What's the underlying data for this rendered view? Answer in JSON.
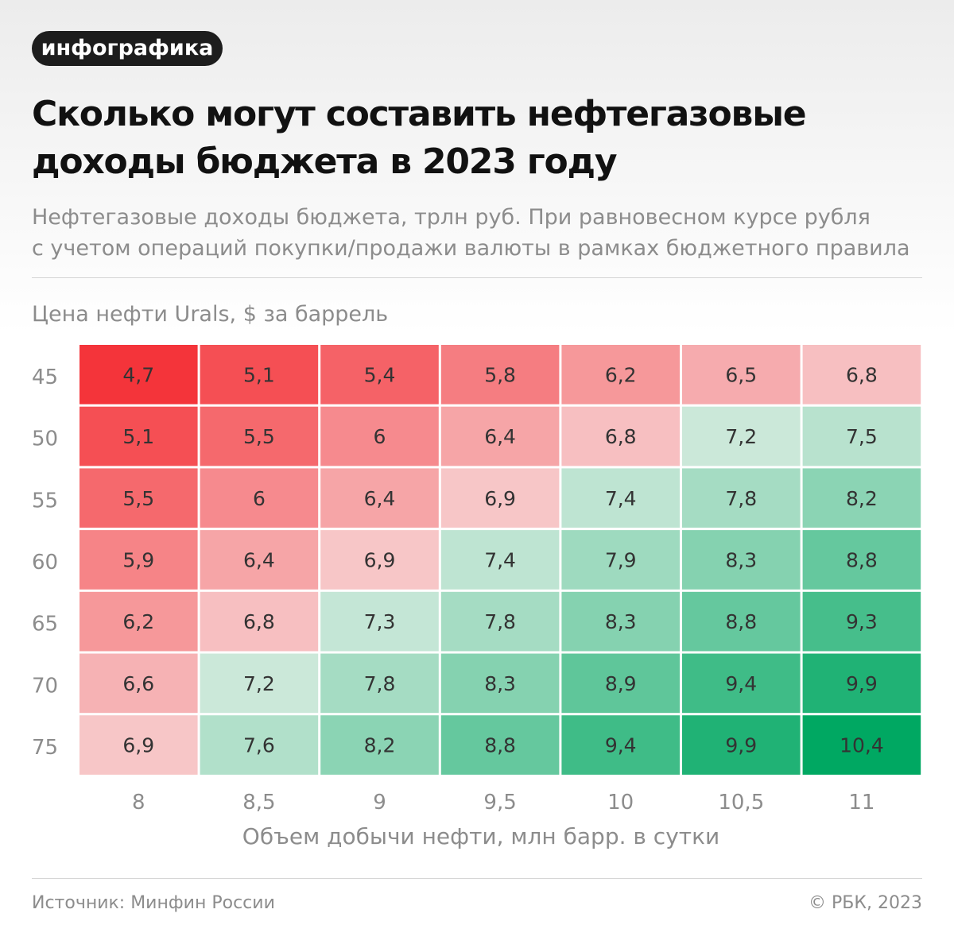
{
  "badge": "инфографика",
  "title_lines": [
    "Сколько могут составить нефтегазовые",
    "доходы бюджета в 2023 году"
  ],
  "subtitle_lines": [
    "Нефтегазовые доходы бюджета, трлн руб. При равновесном курсе рубля",
    "с учетом операций покупки/продажи валюты в рамках бюджетного правила"
  ],
  "footer": {
    "source": "Источник: Минфин России",
    "copyright": "© РБК, 2023"
  },
  "colors": {
    "low": "#f4343a",
    "mid_red": "#f7d0d1",
    "mid_green": "#d4ebdf",
    "high": "#00a862",
    "text": "#333333",
    "axis_text": "#8c8c8c"
  },
  "chart_data": {
    "type": "heatmap",
    "title": "Сколько могут составить нефтегазовые доходы бюджета в 2023 году",
    "ylabel": "Цена нефти Urals, $ за баррель",
    "xlabel": "Объем добычи нефти, млн барр. в сутки",
    "x": [
      "8",
      "8,5",
      "9",
      "9,5",
      "10",
      "10,5",
      "11"
    ],
    "y": [
      "45",
      "50",
      "55",
      "60",
      "65",
      "70",
      "75"
    ],
    "values": [
      [
        4.7,
        5.1,
        5.4,
        5.8,
        6.2,
        6.5,
        6.8
      ],
      [
        5.1,
        5.5,
        6.0,
        6.4,
        6.8,
        7.2,
        7.5
      ],
      [
        5.5,
        6.0,
        6.4,
        6.9,
        7.4,
        7.8,
        8.2
      ],
      [
        5.9,
        6.4,
        6.9,
        7.4,
        7.9,
        8.3,
        8.8
      ],
      [
        6.2,
        6.8,
        7.3,
        7.8,
        8.3,
        8.8,
        9.3
      ],
      [
        6.6,
        7.2,
        7.8,
        8.3,
        8.9,
        9.4,
        9.9
      ],
      [
        6.9,
        7.6,
        8.2,
        8.8,
        9.4,
        9.9,
        10.4
      ]
    ],
    "value_labels": [
      [
        "4,7",
        "5,1",
        "5,4",
        "5,8",
        "6,2",
        "6,5",
        "6,8"
      ],
      [
        "5,1",
        "5,5",
        "6",
        "6,4",
        "6,8",
        "7,2",
        "7,5"
      ],
      [
        "5,5",
        "6",
        "6,4",
        "6,9",
        "7,4",
        "7,8",
        "8,2"
      ],
      [
        "5,9",
        "6,4",
        "6,9",
        "7,4",
        "7,9",
        "8,3",
        "8,8"
      ],
      [
        "6,2",
        "6,8",
        "7,3",
        "7,8",
        "8,3",
        "8,8",
        "9,3"
      ],
      [
        "6,6",
        "7,2",
        "7,8",
        "8,3",
        "8,9",
        "9,4",
        "9,9"
      ],
      [
        "6,9",
        "7,6",
        "8,2",
        "8,8",
        "9,4",
        "9,9",
        "10,4"
      ]
    ]
  }
}
